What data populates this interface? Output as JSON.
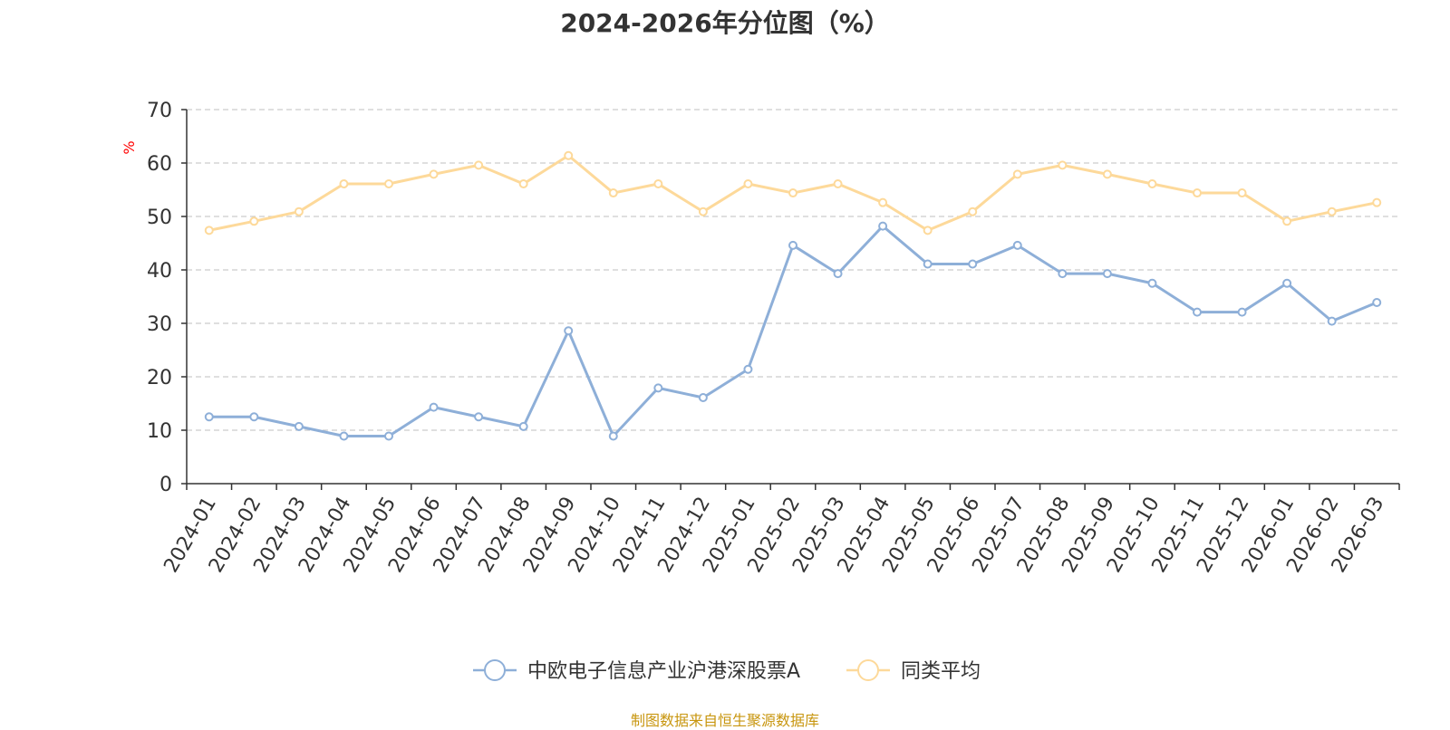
{
  "colors": {
    "series_a": "#8eafd8",
    "series_b": "#fdd99a",
    "axis": "#333333",
    "grid": "#cccccc",
    "ylabel": "#ff0000",
    "source": "#c8960f"
  },
  "footer": {
    "source": "制图数据来自恒生聚源数据库"
  },
  "chart_data": {
    "type": "line",
    "title": "2024-2026年分位图（%）",
    "ylabel": "%",
    "xlabel": "",
    "ylim": [
      0,
      70
    ],
    "yticks": [
      0,
      10,
      20,
      30,
      40,
      50,
      60,
      70
    ],
    "grid": true,
    "legend_position": "bottom",
    "categories": [
      "2024-01",
      "2024-02",
      "2024-03",
      "2024-04",
      "2024-05",
      "2024-06",
      "2024-07",
      "2024-08",
      "2024-09",
      "2024-10",
      "2024-11",
      "2024-12",
      "2025-01",
      "2025-02",
      "2025-03",
      "2025-04",
      "2025-05",
      "2025-06",
      "2025-07",
      "2025-08",
      "2025-09",
      "2025-10",
      "2025-11",
      "2025-12",
      "2026-01",
      "2026-02",
      "2026-03"
    ],
    "series": [
      {
        "name": "中欧电子信息产业沪港深股票A",
        "values": [
          12.5,
          12.5,
          10.7,
          8.9,
          8.9,
          14.3,
          12.5,
          10.7,
          28.6,
          8.9,
          17.9,
          16.1,
          21.4,
          44.6,
          39.3,
          48.2,
          41.1,
          41.1,
          44.6,
          39.3,
          39.3,
          37.5,
          32.1,
          32.1,
          37.5,
          30.4,
          33.9
        ]
      },
      {
        "name": "同类平均",
        "values": [
          47.4,
          49.1,
          50.9,
          56.1,
          56.1,
          57.9,
          59.6,
          56.1,
          61.4,
          54.4,
          56.1,
          50.9,
          56.1,
          54.4,
          56.1,
          52.6,
          47.4,
          50.9,
          57.9,
          59.6,
          57.9,
          56.1,
          54.4,
          54.4,
          49.1,
          50.9,
          52.6
        ]
      }
    ]
  }
}
